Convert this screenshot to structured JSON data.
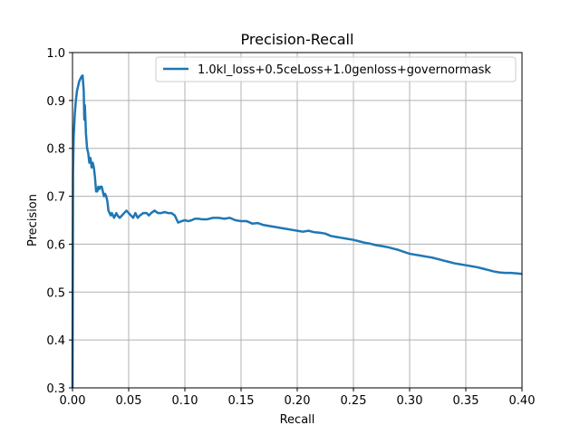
{
  "chart_data": {
    "type": "line",
    "title": "Precision-Recall",
    "xlabel": "Recall",
    "ylabel": "Precision",
    "xlim": [
      0.0,
      0.4
    ],
    "ylim": [
      0.3,
      1.0
    ],
    "xticks": [
      "0.00",
      "0.05",
      "0.10",
      "0.15",
      "0.20",
      "0.25",
      "0.30",
      "0.35",
      "0.40"
    ],
    "yticks": [
      "0.3",
      "0.4",
      "0.5",
      "0.6",
      "0.7",
      "0.8",
      "0.9",
      "1.0"
    ],
    "grid": true,
    "legend_position": "top-right",
    "series": [
      {
        "name": "1.0kl_loss+0.5ceLoss+1.0genloss+governormask",
        "color": "#1f77b4",
        "x": [
          0.0,
          0.0005,
          0.001,
          0.002,
          0.003,
          0.004,
          0.005,
          0.006,
          0.007,
          0.008,
          0.009,
          0.01,
          0.0105,
          0.011,
          0.012,
          0.013,
          0.014,
          0.015,
          0.016,
          0.017,
          0.018,
          0.019,
          0.02,
          0.021,
          0.022,
          0.023,
          0.024,
          0.025,
          0.026,
          0.027,
          0.028,
          0.029,
          0.03,
          0.031,
          0.032,
          0.033,
          0.034,
          0.035,
          0.036,
          0.037,
          0.038,
          0.039,
          0.04,
          0.042,
          0.044,
          0.046,
          0.048,
          0.05,
          0.052,
          0.054,
          0.056,
          0.058,
          0.06,
          0.063,
          0.066,
          0.068,
          0.07,
          0.073,
          0.076,
          0.079,
          0.082,
          0.085,
          0.088,
          0.091,
          0.094,
          0.097,
          0.1,
          0.103,
          0.106,
          0.109,
          0.112,
          0.115,
          0.12,
          0.125,
          0.13,
          0.135,
          0.14,
          0.145,
          0.15,
          0.155,
          0.16,
          0.165,
          0.17,
          0.175,
          0.18,
          0.185,
          0.19,
          0.195,
          0.2,
          0.205,
          0.21,
          0.215,
          0.22,
          0.225,
          0.23,
          0.235,
          0.24,
          0.245,
          0.25,
          0.255,
          0.26,
          0.265,
          0.27,
          0.275,
          0.28,
          0.285,
          0.29,
          0.295,
          0.3,
          0.305,
          0.31,
          0.315,
          0.32,
          0.325,
          0.33,
          0.335,
          0.34,
          0.345,
          0.35,
          0.355,
          0.36,
          0.365,
          0.37,
          0.375,
          0.38,
          0.385,
          0.39,
          0.395,
          0.4
        ],
        "y": [
          0.3,
          0.75,
          0.82,
          0.87,
          0.9,
          0.92,
          0.93,
          0.94,
          0.945,
          0.95,
          0.952,
          0.92,
          0.86,
          0.89,
          0.83,
          0.8,
          0.79,
          0.77,
          0.78,
          0.76,
          0.77,
          0.76,
          0.74,
          0.71,
          0.71,
          0.72,
          0.715,
          0.72,
          0.72,
          0.71,
          0.7,
          0.705,
          0.7,
          0.69,
          0.67,
          0.665,
          0.66,
          0.665,
          0.66,
          0.655,
          0.66,
          0.665,
          0.66,
          0.655,
          0.66,
          0.665,
          0.67,
          0.665,
          0.66,
          0.655,
          0.665,
          0.655,
          0.66,
          0.665,
          0.665,
          0.66,
          0.665,
          0.67,
          0.665,
          0.665,
          0.667,
          0.665,
          0.665,
          0.66,
          0.645,
          0.648,
          0.65,
          0.648,
          0.65,
          0.653,
          0.653,
          0.652,
          0.652,
          0.655,
          0.655,
          0.653,
          0.655,
          0.65,
          0.648,
          0.648,
          0.643,
          0.644,
          0.64,
          0.638,
          0.636,
          0.634,
          0.632,
          0.63,
          0.628,
          0.626,
          0.628,
          0.625,
          0.624,
          0.622,
          0.617,
          0.615,
          0.613,
          0.611,
          0.609,
          0.606,
          0.603,
          0.601,
          0.598,
          0.596,
          0.594,
          0.591,
          0.588,
          0.584,
          0.58,
          0.578,
          0.576,
          0.574,
          0.572,
          0.569,
          0.566,
          0.563,
          0.56,
          0.558,
          0.556,
          0.554,
          0.552,
          0.549,
          0.546,
          0.543,
          0.541,
          0.54,
          0.54,
          0.539,
          0.538
        ]
      }
    ]
  }
}
